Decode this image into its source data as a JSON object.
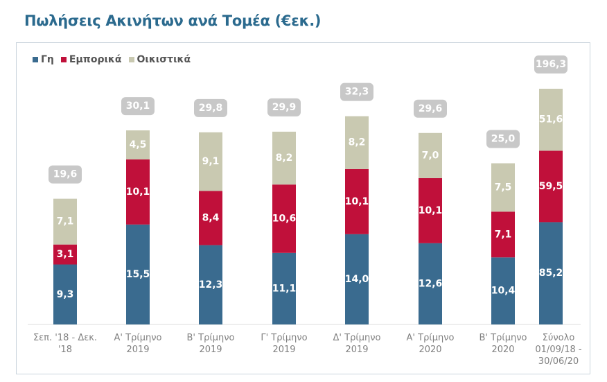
{
  "title": "Πωλήσεις Ακινήτων ανά Τομέα (€εκ.)",
  "legend": [
    {
      "label": "Γη",
      "color": "#3a6b8f"
    },
    {
      "label": "Εμπορικά",
      "color": "#c0103a"
    },
    {
      "label": "Οικιστικά",
      "color": "#c9c9b1"
    }
  ],
  "chart_data": {
    "type": "bar",
    "stacked": true,
    "title": "Πωλήσεις Ακινήτων ανά Τομέα (€εκ.)",
    "xlabel": "",
    "ylabel": "",
    "legend_position": "top-left",
    "grid": false,
    "categories": [
      [
        "Σεπ. '18 - Δεκ.",
        "'18"
      ],
      [
        "Α' Τρίμηνο",
        "2019"
      ],
      [
        "Β' Τρίμηνο",
        "2019"
      ],
      [
        "Γ' Τρίμηνο",
        "2019"
      ],
      [
        "Δ' Τρίμηνο",
        "2019"
      ],
      [
        "Α' Τρίμηνο",
        "2020"
      ],
      [
        "Β' Τρίμηνο",
        "2020"
      ],
      [
        "Σύνολο",
        "01/09/18 -",
        "30/06/20"
      ]
    ],
    "series": [
      {
        "name": "Γη",
        "color": "#3a6b8f",
        "values": [
          9.3,
          15.5,
          12.3,
          11.1,
          14.0,
          12.6,
          10.4,
          85.2
        ]
      },
      {
        "name": "Εμπορικά",
        "color": "#c0103a",
        "values": [
          3.1,
          10.1,
          8.4,
          10.6,
          10.1,
          10.1,
          7.1,
          59.5
        ]
      },
      {
        "name": "Οικιστικά",
        "color": "#c9c9b1",
        "values": [
          7.1,
          4.5,
          9.1,
          8.2,
          8.2,
          7.0,
          7.5,
          51.6
        ]
      }
    ],
    "totals": [
      19.6,
      30.1,
      29.8,
      29.9,
      32.3,
      29.6,
      25.0,
      196.3
    ],
    "total_badge_color": "#c8c8c8",
    "decimal_separator": ","
  }
}
